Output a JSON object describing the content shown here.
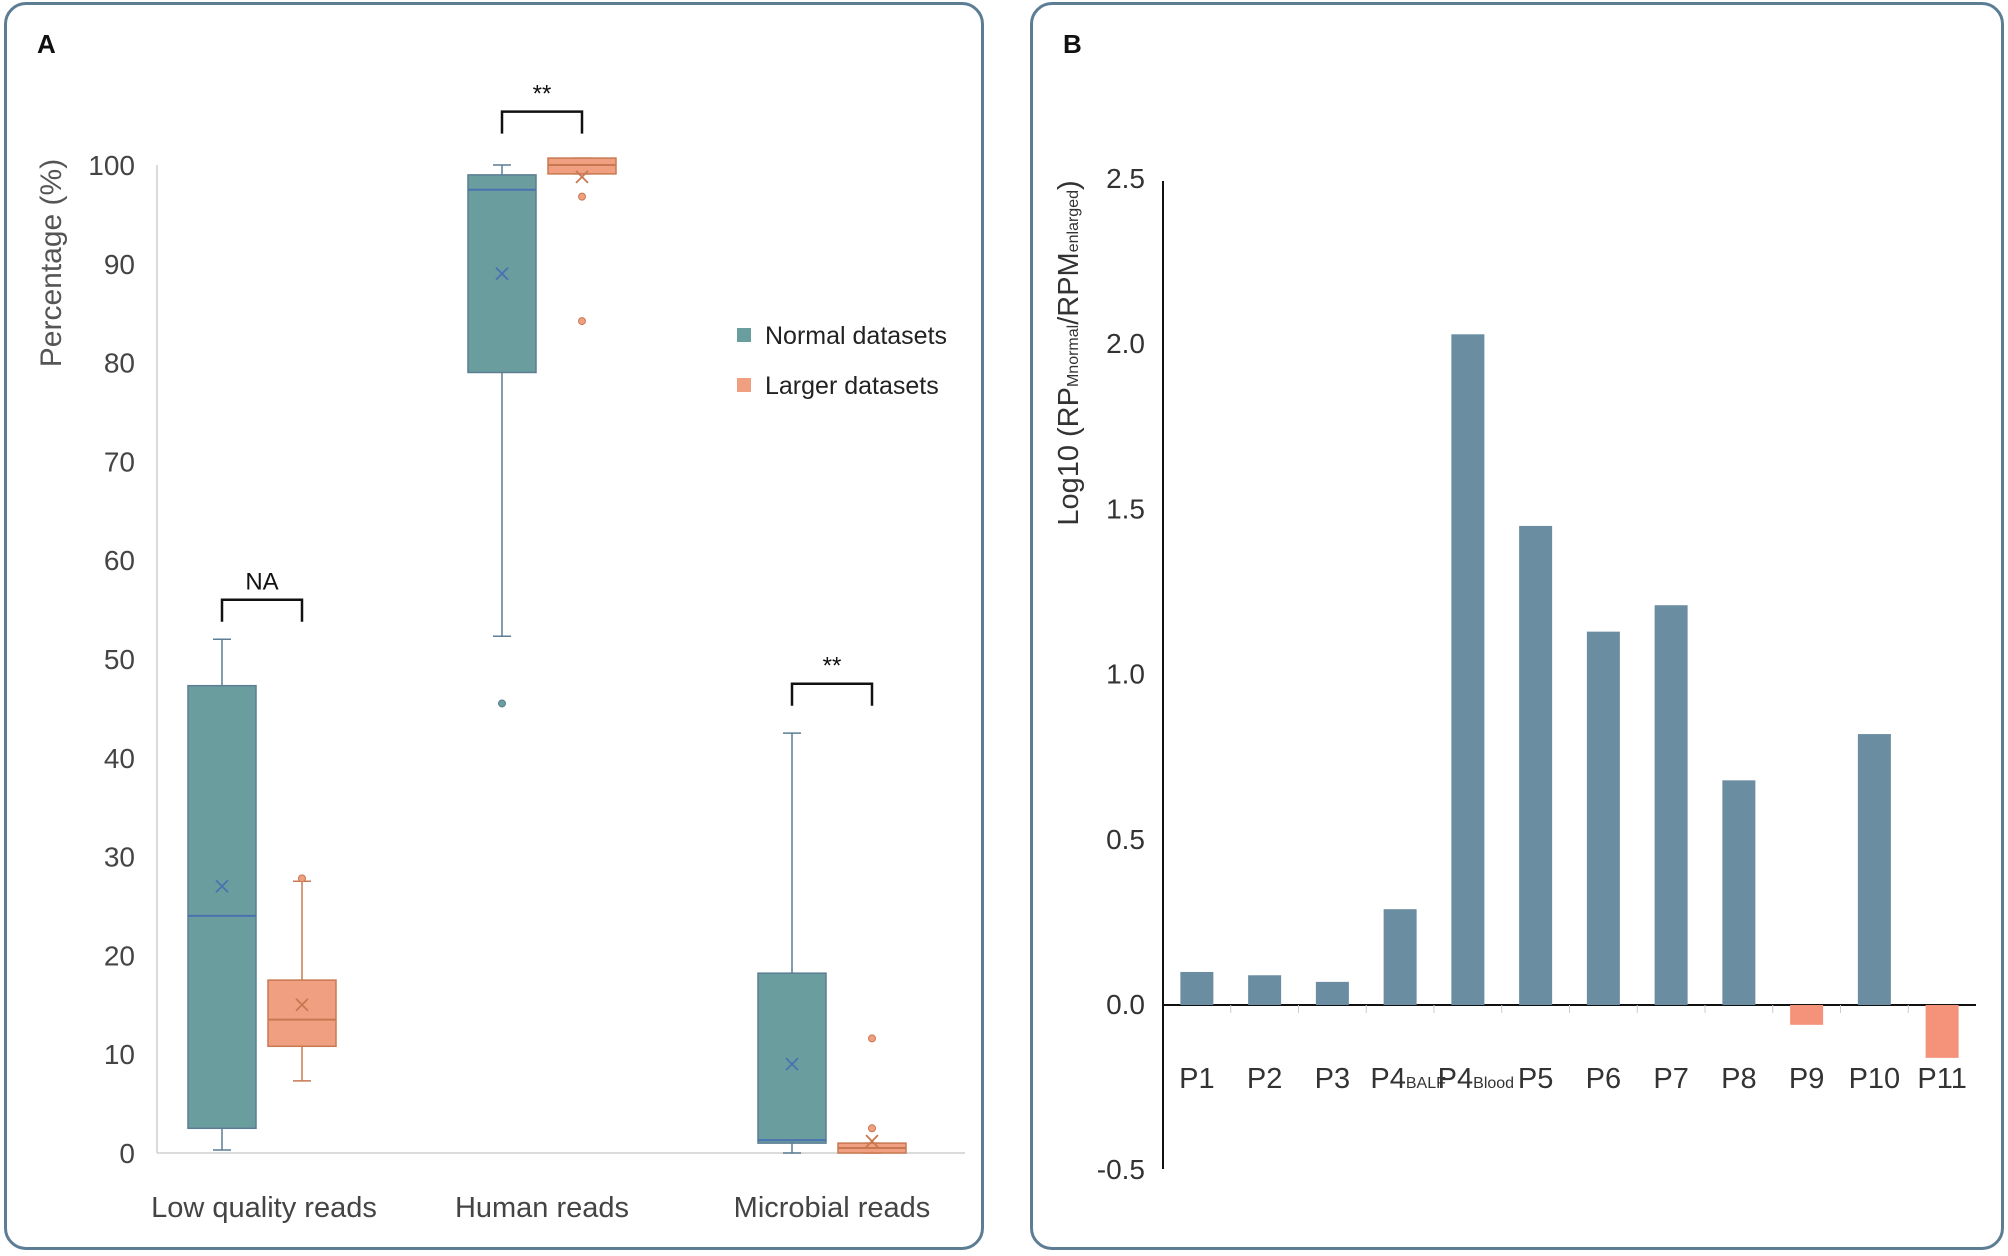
{
  "panels": {
    "a_label": "A",
    "b_label": "B"
  },
  "chart_data": [
    {
      "type": "box",
      "panel": "A",
      "ylabel": "Percentage (%)",
      "ylim": [
        0,
        100
      ],
      "yticks": [
        0,
        10,
        20,
        30,
        40,
        50,
        60,
        70,
        80,
        90,
        100
      ],
      "categories": [
        "Low quality reads",
        "Human reads",
        "Microbial reads"
      ],
      "legend": {
        "position": "right",
        "entries": [
          {
            "name": "Normal datasets",
            "color": "#6a9e9e"
          },
          {
            "name": "Larger datasets",
            "color": "#f0a080"
          }
        ]
      },
      "series": [
        {
          "name": "Normal datasets",
          "color": "#6a9e9e",
          "line_color": "#5c7d94",
          "median_color": "#4a72b0",
          "boxes": [
            {
              "category": "Low quality reads",
              "min": 0.3,
              "q1": 2.5,
              "median": 24,
              "q3": 47.3,
              "max": 52,
              "mean": 27,
              "outliers": []
            },
            {
              "category": "Human reads",
              "min": 52.3,
              "q1": 79,
              "median": 97.5,
              "q3": 99,
              "max": 100,
              "mean": 89,
              "outliers": [
                45.5
              ]
            },
            {
              "category": "Microbial reads",
              "min": 0,
              "q1": 1,
              "median": 1.3,
              "q3": 18.2,
              "max": 42.5,
              "mean": 9,
              "outliers": []
            }
          ]
        },
        {
          "name": "Larger datasets",
          "color": "#f0a080",
          "line_color": "#c87850",
          "median_color": "#c87850",
          "boxes": [
            {
              "category": "Low quality reads",
              "min": 7.3,
              "q1": 10.8,
              "median": 13.5,
              "q3": 17.5,
              "max": 27.5,
              "mean": 15,
              "outliers": [
                27.8
              ]
            },
            {
              "category": "Human reads",
              "min": 99.1,
              "q1": 99.1,
              "median": 100,
              "q3": 100.7,
              "max": 100.7,
              "mean": 98.8,
              "outliers": [
                96.8,
                84.2
              ]
            },
            {
              "category": "Microbial reads",
              "min": 0,
              "q1": 0,
              "median": 0.5,
              "q3": 1,
              "max": 1,
              "mean": 1.2,
              "outliers": [
                2.5,
                11.6
              ]
            }
          ]
        }
      ],
      "significance": [
        {
          "category": "Low quality reads",
          "label": "NA",
          "level": 56
        },
        {
          "category": "Human reads",
          "label": "**",
          "level": 105.4
        },
        {
          "category": "Microbial reads",
          "label": "**",
          "level": 47.5
        }
      ]
    },
    {
      "type": "bar",
      "panel": "B",
      "ylabel": "Log10 (RPMnormal/RPMenlarged)",
      "ylabel_parts": {
        "prefix": "Log10 (RP",
        "sub1": "Mnormal",
        "mid": "/RPM",
        "sub2": "enlarged",
        "suffix": ")"
      },
      "ylim": [
        -0.5,
        2.5
      ],
      "yticks": [
        "-0.5",
        "0.0",
        "0.5",
        "1.0",
        "1.5",
        "2.0",
        "2.5"
      ],
      "categories": [
        {
          "main": "P1",
          "sub": ""
        },
        {
          "main": "P2",
          "sub": ""
        },
        {
          "main": "P3",
          "sub": ""
        },
        {
          "main": "P4",
          "sub": "BALF"
        },
        {
          "main": "P4",
          "sub": "Blood"
        },
        {
          "main": "P5",
          "sub": ""
        },
        {
          "main": "P6",
          "sub": ""
        },
        {
          "main": "P7",
          "sub": ""
        },
        {
          "main": "P8",
          "sub": ""
        },
        {
          "main": "P9",
          "sub": ""
        },
        {
          "main": "P10",
          "sub": ""
        },
        {
          "main": "P11",
          "sub": ""
        }
      ],
      "values": [
        0.1,
        0.09,
        0.07,
        0.29,
        2.03,
        1.45,
        1.13,
        1.21,
        0.68,
        -0.06,
        0.82,
        -0.16
      ],
      "positive_color": "#6b8da1",
      "negative_color": "#f4937a"
    }
  ]
}
